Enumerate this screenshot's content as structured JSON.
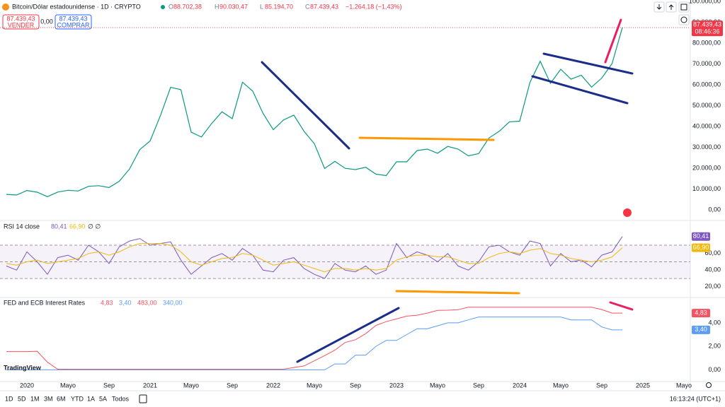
{
  "header": {
    "symbol": "Bitcoin/Dólar estadounidense · 1D · CRYPTO",
    "ohlc": [
      {
        "key": "O",
        "value": "88.702,38"
      },
      {
        "key": "H",
        "value": "90.030,47"
      },
      {
        "key": "L",
        "value": "85.194,70"
      },
      {
        "key": "C",
        "value": "87.439,43"
      }
    ],
    "change": "−1.264,18 (−1,43%)"
  },
  "trade": {
    "sell_price": "87.439,43",
    "sell": "VENDER",
    "spread": "0,00",
    "buy_price": "87.439,43",
    "buy": "COMPRAR"
  },
  "logo": "TradingView",
  "toolbar": {
    "ranges": [
      "1D",
      "5D",
      "1M",
      "3M",
      "6M",
      "YTD",
      "1A",
      "5A",
      "Todos"
    ],
    "clock": "16:13:24 (UTC+1)"
  },
  "chart_data": [
    {
      "type": "line",
      "color": "#089981",
      "x": [
        "2019-11",
        "2019-12",
        "2020-01",
        "2020-02",
        "2020-03",
        "2020-04",
        "2020-05",
        "2020-06",
        "2020-07",
        "2020-08",
        "2020-09",
        "2020-10",
        "2020-11",
        "2020-12",
        "2021-01",
        "2021-02",
        "2021-03",
        "2021-04",
        "2021-05",
        "2021-06",
        "2021-07",
        "2021-08",
        "2021-09",
        "2021-10",
        "2021-11",
        "2021-12",
        "2022-01",
        "2022-02",
        "2022-03",
        "2022-04",
        "2022-05",
        "2022-06",
        "2022-07",
        "2022-08",
        "2022-09",
        "2022-10",
        "2022-11",
        "2022-12",
        "2023-01",
        "2023-02",
        "2023-03",
        "2023-04",
        "2023-05",
        "2023-06",
        "2023-07",
        "2023-08",
        "2023-09",
        "2023-10",
        "2023-11",
        "2023-12",
        "2024-01",
        "2024-02",
        "2024-03",
        "2024-04",
        "2024-05",
        "2024-06",
        "2024-07",
        "2024-08",
        "2024-09",
        "2024-10",
        "2024-11"
      ],
      "values": [
        7500,
        7200,
        9350,
        8550,
        6400,
        8600,
        9450,
        9140,
        11350,
        11650,
        10780,
        13800,
        19700,
        29000,
        33100,
        45200,
        58800,
        57700,
        37300,
        35000,
        41500,
        47100,
        43800,
        61300,
        57000,
        46300,
        38500,
        43200,
        45500,
        37700,
        31800,
        19900,
        23300,
        20000,
        19400,
        20500,
        17200,
        16500,
        23100,
        23100,
        28500,
        29200,
        27200,
        30500,
        29200,
        26000,
        27000,
        34500,
        37700,
        42300,
        42600,
        61200,
        71300,
        60700,
        67500,
        62700,
        64600,
        58900,
        63300,
        70200,
        87439.43
      ],
      "last_value": 87439.43,
      "last_label": "87.439,43",
      "countdown": "08:46:36",
      "ylim": [
        -5000,
        100000
      ],
      "yticks": [
        {
          "value": 0,
          "label": "0,00"
        },
        {
          "value": 10000,
          "label": "10.000,00"
        },
        {
          "value": 20000,
          "label": "20.000,00"
        },
        {
          "value": 30000,
          "label": "30.000,00"
        },
        {
          "value": 40000,
          "label": "40.000,00"
        },
        {
          "value": 50000,
          "label": "50.000,00"
        },
        {
          "value": 60000,
          "label": "60.000,00"
        },
        {
          "value": 70000,
          "label": "70.000,00"
        },
        {
          "value": 80000,
          "label": "80.000,00"
        },
        {
          "value": 90000,
          "label": "90.000,00"
        },
        {
          "value": 100000,
          "label": "100.000,00"
        }
      ],
      "xticks": [
        {
          "value": "2020-01",
          "label": "2020"
        },
        {
          "value": "2020-05",
          "label": "Mayo"
        },
        {
          "value": "2020-09",
          "label": "Sep"
        },
        {
          "value": "2021-01",
          "label": "2021"
        },
        {
          "value": "2021-05",
          "label": "Mayo"
        },
        {
          "value": "2021-09",
          "label": "Sep"
        },
        {
          "value": "2022-01",
          "label": "2022"
        },
        {
          "value": "2022-05",
          "label": "Mayo"
        },
        {
          "value": "2022-09",
          "label": "Sep"
        },
        {
          "value": "2023-01",
          "label": "2023"
        },
        {
          "value": "2023-05",
          "label": "Mayo"
        },
        {
          "value": "2023-09",
          "label": "Sep"
        },
        {
          "value": "2024-01",
          "label": "2024"
        },
        {
          "value": "2024-05",
          "label": "Mayo"
        },
        {
          "value": "2024-09",
          "label": "Sep"
        },
        {
          "value": "2025-01",
          "label": "2025"
        },
        {
          "value": "2025-05",
          "label": "Mayo"
        }
      ]
    },
    {
      "type": "line",
      "title": "RSI 14 close",
      "extra": "∅ ∅",
      "series": [
        {
          "color": "#7e57c2",
          "last_label": "80,41",
          "values": [
            45,
            40,
            62,
            50,
            35,
            55,
            58,
            52,
            70,
            62,
            48,
            68,
            75,
            78,
            70,
            72,
            74,
            52,
            35,
            45,
            55,
            60,
            52,
            66,
            58,
            40,
            38,
            52,
            55,
            42,
            35,
            30,
            48,
            40,
            38,
            45,
            35,
            40,
            72,
            55,
            62,
            58,
            50,
            60,
            45,
            40,
            50,
            68,
            70,
            62,
            58,
            75,
            72,
            45,
            60,
            50,
            52,
            44,
            58,
            62,
            80.41
          ]
        },
        {
          "color": "#f0b90b",
          "last_label": "66,90",
          "values": [
            48,
            46,
            50,
            52,
            48,
            50,
            52,
            54,
            60,
            62,
            58,
            62,
            68,
            72,
            72,
            72,
            70,
            62,
            50,
            46,
            50,
            54,
            55,
            60,
            58,
            52,
            46,
            48,
            50,
            46,
            42,
            38,
            42,
            42,
            40,
            42,
            40,
            42,
            52,
            56,
            58,
            58,
            56,
            56,
            52,
            48,
            48,
            55,
            60,
            62,
            60,
            64,
            66,
            60,
            58,
            54,
            52,
            50,
            52,
            56,
            66.9
          ]
        }
      ],
      "levels": [
        30,
        50,
        70
      ],
      "ylim": [
        8,
        98
      ],
      "yticks": [
        {
          "value": 20,
          "label": "20,00"
        },
        {
          "value": 40,
          "label": "40,00"
        },
        {
          "value": 60,
          "label": "60,00"
        }
      ]
    },
    {
      "type": "line",
      "title": "FED and ECB Interest Rates",
      "legend_values": [
        "4,83",
        "3,40",
        "483,00",
        "340,00"
      ],
      "series": [
        {
          "color": "#f7525f",
          "last_label": "4,83",
          "values": [
            1.55,
            1.55,
            1.55,
            1.58,
            0.65,
            0.05,
            0.05,
            0.05,
            0.05,
            0.05,
            0.05,
            0.05,
            0.05,
            0.05,
            0.05,
            0.05,
            0.05,
            0.05,
            0.05,
            0.05,
            0.05,
            0.05,
            0.05,
            0.05,
            0.05,
            0.05,
            0.05,
            0.05,
            0.2,
            0.33,
            0.77,
            1.21,
            1.68,
            2.33,
            2.56,
            3.08,
            3.78,
            4.1,
            4.33,
            4.57,
            4.65,
            4.83,
            5.06,
            5.08,
            5.12,
            5.33,
            5.33,
            5.33,
            5.33,
            5.33,
            5.33,
            5.33,
            5.33,
            5.33,
            5.33,
            5.33,
            5.33,
            5.33,
            5.13,
            4.83,
            4.83
          ]
        },
        {
          "color": "#5b9cf6",
          "last_label": "3,40",
          "values": [
            0,
            0,
            0,
            0,
            0,
            0,
            0,
            0,
            0,
            0,
            0,
            0,
            0,
            0,
            0,
            0,
            0,
            0,
            0,
            0,
            0,
            0,
            0,
            0,
            0,
            0,
            0,
            0,
            0,
            0,
            0,
            0,
            0.5,
            0.5,
            1.25,
            1.25,
            2.0,
            2.5,
            2.5,
            3.0,
            3.5,
            3.5,
            3.75,
            4.0,
            4.0,
            4.25,
            4.5,
            4.5,
            4.5,
            4.5,
            4.5,
            4.5,
            4.5,
            4.5,
            4.5,
            4.25,
            4.25,
            4.25,
            3.65,
            3.4,
            3.4
          ]
        }
      ],
      "ylim": [
        -1,
        6.1
      ],
      "yticks": [
        {
          "value": 0,
          "label": "0,00"
        },
        {
          "value": 2,
          "label": "2,00"
        },
        {
          "value": 4,
          "label": "4,00"
        }
      ]
    }
  ]
}
